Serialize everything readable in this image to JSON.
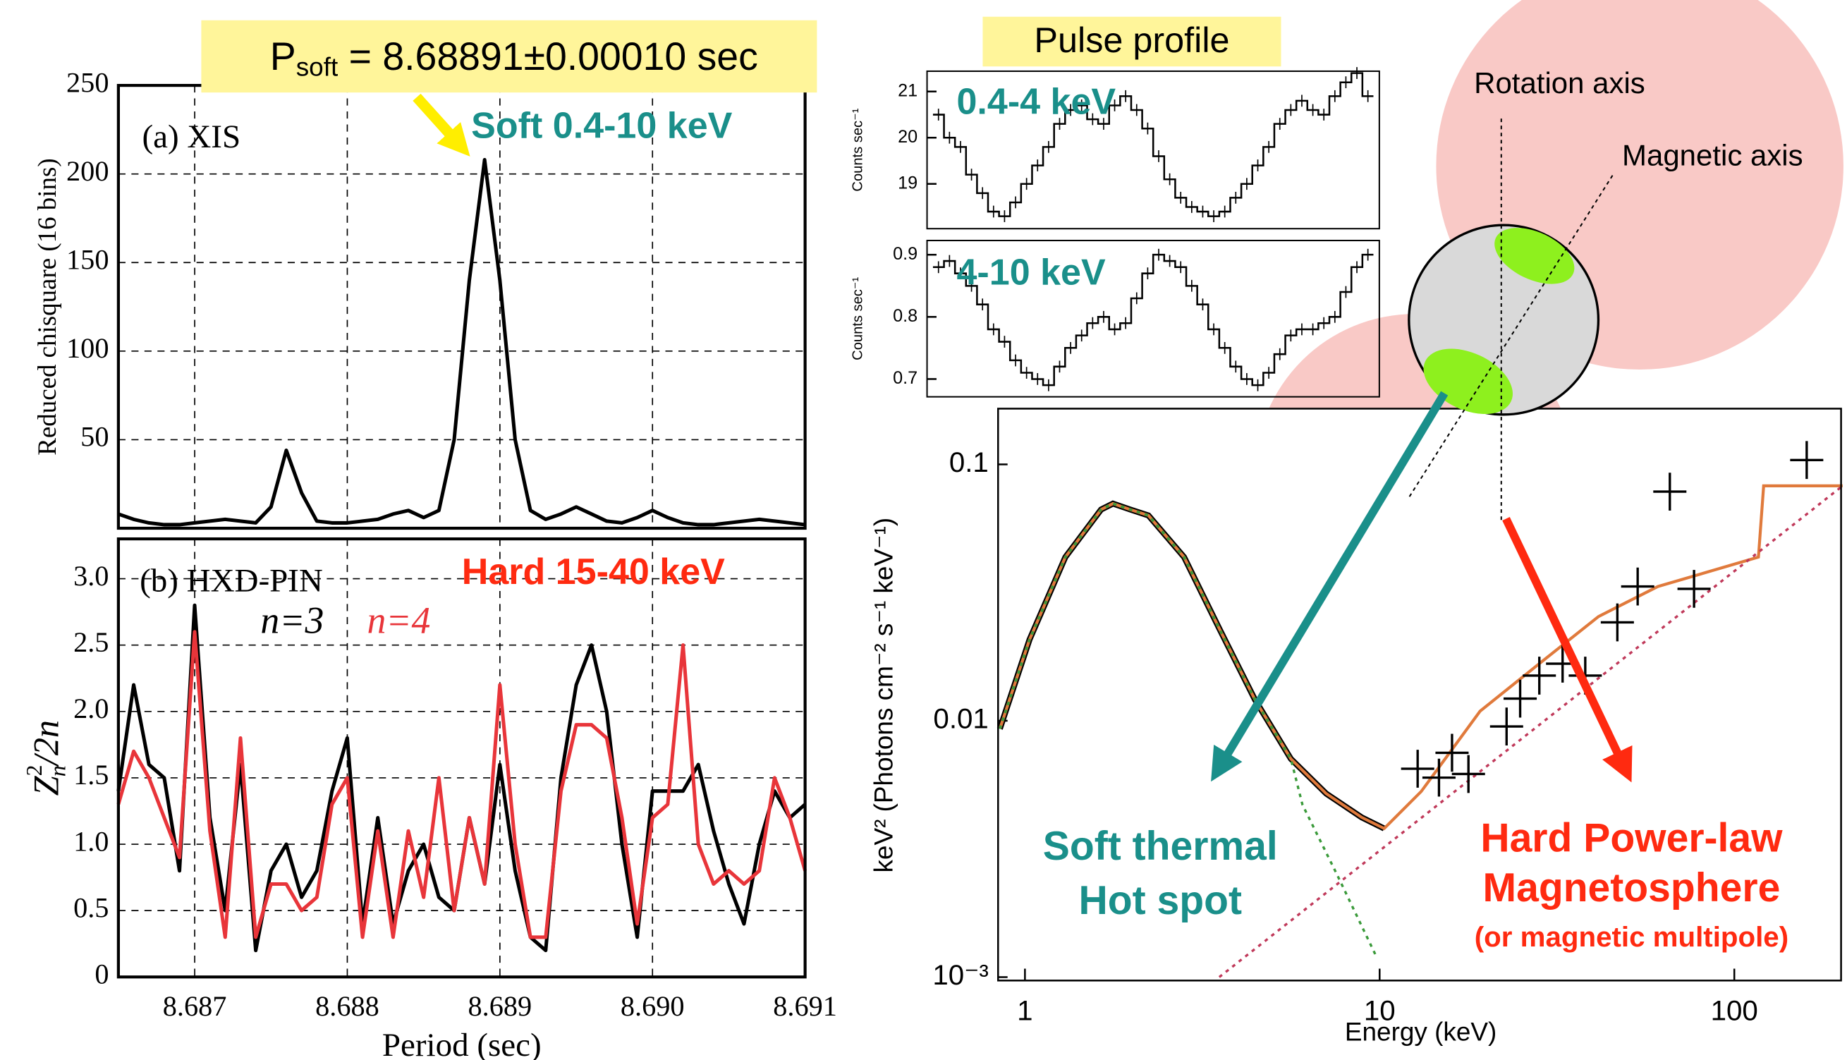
{
  "chart_data": [
    {
      "type": "line",
      "title": "(a) XIS",
      "annotation": "Soft 0.4-10 keV",
      "ylabel": "Reduced chisquare (16 bins)",
      "xlim": [
        8.6865,
        8.691
      ],
      "xticks": [
        8.687,
        8.688,
        8.689,
        8.69,
        8.691
      ],
      "xtick_labels": false,
      "ylim": [
        0,
        250
      ],
      "yticks": [
        50,
        100,
        150,
        200,
        250
      ],
      "grid": true,
      "x": [
        8.6865,
        8.6866,
        8.6867,
        8.6868,
        8.6869,
        8.687,
        8.6871,
        8.6872,
        8.6873,
        8.6874,
        8.6875,
        8.6876,
        8.6877,
        8.6878,
        8.6879,
        8.688,
        8.6881,
        8.6882,
        8.6883,
        8.6884,
        8.6885,
        8.6886,
        8.6887,
        8.6888,
        8.6889,
        8.689,
        8.6891,
        8.6892,
        8.6893,
        8.6894,
        8.6895,
        8.6896,
        8.6897,
        8.6898,
        8.6899,
        8.69,
        8.6901,
        8.6902,
        8.6903,
        8.6904,
        8.6905,
        8.6906,
        8.6907,
        8.6908,
        8.6909,
        8.691
      ],
      "series": [
        {
          "color": "#000000",
          "values": [
            8,
            5,
            3,
            2,
            2,
            3,
            4,
            5,
            4,
            3,
            12,
            44,
            20,
            4,
            3,
            3,
            4,
            5,
            8,
            10,
            6,
            10,
            50,
            140,
            208,
            140,
            50,
            10,
            5,
            8,
            12,
            8,
            4,
            3,
            6,
            10,
            6,
            3,
            2,
            2,
            3,
            4,
            5,
            4,
            3,
            2
          ]
        }
      ]
    },
    {
      "type": "line",
      "title": "(b) HXD-PIN",
      "annotation": "Hard 15-40 keV",
      "xlabel": "Period (sec)",
      "ylabel": {
        "base": "Z",
        "sup": "2",
        "sub": "n",
        "rest": "/2n"
      },
      "xlim": [
        8.6865,
        8.691
      ],
      "xticks": [
        8.687,
        8.688,
        8.689,
        {
          "value": 8.69,
          "label": "8.690"
        },
        8.691
      ],
      "ylim": [
        0,
        3.3
      ],
      "yticks": [
        0,
        0.5,
        {
          "value": 1,
          "label": "1.0"
        },
        1.5,
        {
          "value": 2,
          "label": "2.0"
        },
        2.5,
        {
          "value": 3,
          "label": "3.0"
        }
      ],
      "grid": true,
      "x": [
        8.6865,
        8.6866,
        8.6867,
        8.6868,
        8.6869,
        8.687,
        8.6871,
        8.6872,
        8.6873,
        8.6874,
        8.6875,
        8.6876,
        8.6877,
        8.6878,
        8.6879,
        8.688,
        8.6881,
        8.6882,
        8.6883,
        8.6884,
        8.6885,
        8.6886,
        8.6887,
        8.6888,
        8.6889,
        8.689,
        8.6891,
        8.6892,
        8.6893,
        8.6894,
        8.6895,
        8.6896,
        8.6897,
        8.6898,
        8.6899,
        8.69,
        8.6901,
        8.6902,
        8.6903,
        8.6904,
        8.6905,
        8.6906,
        8.6907,
        8.6908,
        8.6909,
        8.691
      ],
      "series": [
        {
          "name": "n=3",
          "color": "#000000",
          "values": [
            1.4,
            2.2,
            1.6,
            1.5,
            0.8,
            2.8,
            1.2,
            0.5,
            1.6,
            0.2,
            0.8,
            1.0,
            0.6,
            0.8,
            1.4,
            1.8,
            0.4,
            1.2,
            0.4,
            0.8,
            1.0,
            0.6,
            0.5,
            1.2,
            0.7,
            1.6,
            0.8,
            0.3,
            0.2,
            1.5,
            2.2,
            2.5,
            2.0,
            1.0,
            0.3,
            1.4,
            1.4,
            1.4,
            1.6,
            1.1,
            0.7,
            0.4,
            1.0,
            1.4,
            1.2,
            1.3
          ]
        },
        {
          "name": "n=4",
          "color": "#e8353a",
          "values": [
            1.3,
            1.7,
            1.5,
            1.2,
            0.9,
            2.6,
            1.1,
            0.3,
            1.8,
            0.3,
            0.7,
            0.7,
            0.5,
            0.6,
            1.3,
            1.5,
            0.3,
            1.1,
            0.3,
            1.1,
            0.6,
            1.5,
            0.5,
            1.2,
            0.7,
            2.2,
            1.0,
            0.3,
            0.3,
            1.4,
            1.9,
            1.9,
            1.8,
            1.2,
            0.4,
            1.2,
            1.3,
            2.5,
            1.0,
            0.7,
            0.8,
            0.7,
            0.8,
            1.5,
            1.2,
            0.8
          ]
        }
      ]
    },
    {
      "type": "step",
      "title": "Pulse profile",
      "annotation": "0.4-4 keV",
      "ylabel": "Counts sec⁻¹",
      "ylim": [
        18.03,
        21.44
      ],
      "yticks": [
        19,
        20,
        21
      ],
      "grid": false,
      "color": "#000000",
      "values": [
        20.5,
        20.0,
        19.8,
        19.2,
        18.8,
        18.4,
        18.3,
        18.6,
        19.0,
        19.4,
        19.8,
        20.3,
        20.6,
        20.7,
        20.4,
        20.3,
        20.7,
        20.9,
        20.6,
        20.2,
        19.6,
        19.1,
        18.7,
        18.5,
        18.4,
        18.3,
        18.4,
        18.7,
        19.0,
        19.4,
        19.8,
        20.3,
        20.6,
        20.8,
        20.6,
        20.5,
        20.9,
        21.2,
        21.4,
        20.9
      ]
    },
    {
      "type": "step",
      "annotation": "4-10 keV",
      "ylabel": "Counts sec⁻¹",
      "ylim": [
        0.6714,
        0.9229
      ],
      "yticks": [
        0.7,
        0.8,
        0.9
      ],
      "grid": false,
      "color": "#000000",
      "values": [
        0.88,
        0.89,
        0.87,
        0.85,
        0.82,
        0.78,
        0.76,
        0.73,
        0.71,
        0.7,
        0.69,
        0.72,
        0.75,
        0.77,
        0.79,
        0.8,
        0.78,
        0.79,
        0.83,
        0.87,
        0.9,
        0.89,
        0.88,
        0.85,
        0.82,
        0.78,
        0.75,
        0.72,
        0.7,
        0.69,
        0.71,
        0.74,
        0.77,
        0.78,
        0.78,
        0.79,
        0.8,
        0.84,
        0.88,
        0.9
      ]
    },
    {
      "type": "spectrum",
      "xlabel": "Energy (keV)",
      "ylabel": "keV² (Photons cm⁻² s⁻¹ keV⁻¹)",
      "xlog": true,
      "ylog": true,
      "grid": false,
      "xlim": [
        0.84,
        200
      ],
      "xticks": [
        1,
        10,
        100
      ],
      "ylim": [
        0.00097,
        0.165
      ],
      "yticks": [
        {
          "value": 0.001,
          "label": "10⁻³"
        },
        0.01,
        0.1
      ],
      "series": [
        {
          "style": "solid",
          "color": "#000000",
          "x": [
            0.85,
            1.03,
            1.3,
            1.64,
            1.77,
            1.98,
            2.23,
            2.81,
            3.53,
            4.45,
            5.62,
            7.07,
            8.9,
            10.3
          ],
          "values": [
            0.0093,
            0.0207,
            0.0435,
            0.0667,
            0.0703,
            0.0667,
            0.0632,
            0.0435,
            0.0229,
            0.0121,
            0.0071,
            0.0052,
            0.0042,
            0.0038
          ]
        },
        {
          "style": "solid",
          "color": "#e07a3c",
          "x": [
            0.85,
            1.03,
            1.3,
            1.64,
            1.77,
            1.98,
            2.23,
            2.81,
            3.53,
            4.45,
            5.62,
            7.07,
            8.9,
            10.3,
            13.1,
            19.2,
            28.2,
            41.4,
            60.9,
            117,
            121,
            202
          ],
          "values": [
            0.0093,
            0.0207,
            0.0435,
            0.0667,
            0.0703,
            0.0667,
            0.0632,
            0.0435,
            0.0229,
            0.0121,
            0.0071,
            0.0052,
            0.0042,
            0.0038,
            0.0053,
            0.0109,
            0.0167,
            0.0255,
            0.0334,
            0.0435,
            0.0825,
            0.0825
          ]
        },
        {
          "style": "dashed",
          "color": "#3a9a3a",
          "x": [
            0.85,
            1.03,
            1.3,
            1.64,
            1.77,
            1.98,
            2.23,
            2.81,
            3.53,
            4.45,
            5.62,
            6.06,
            7.6,
            9.8
          ],
          "values": [
            0.0093,
            0.0207,
            0.0435,
            0.0667,
            0.0703,
            0.0667,
            0.0632,
            0.0435,
            0.0229,
            0.0121,
            0.0071,
            0.0047,
            0.0025,
            0.0012
          ]
        },
        {
          "style": "dashed",
          "color": "#c0395a",
          "x": [
            3.53,
            202
          ],
          "values": [
            0.001,
            0.0825
          ]
        },
        {
          "style": "points",
          "color": "#000000",
          "x": [
            12.8,
            14.7,
            16,
            17.8,
            22.8,
            24.9,
            28.2,
            32.8,
            38,
            46.8,
            53.4,
            65.8,
            77,
            160
          ],
          "values": [
            0.0065,
            0.006,
            0.0075,
            0.0062,
            0.0095,
            0.0122,
            0.015,
            0.0167,
            0.015,
            0.0242,
            0.0334,
            0.0783,
            0.0327,
            0.104
          ]
        }
      ]
    }
  ],
  "annotations": {
    "period": {
      "symbol": "P",
      "subscript": "soft",
      "text": " = 8.68891±0.00010 sec"
    },
    "rotation_axis": "Rotation axis",
    "magnetic_axis": "Magnetic axis",
    "soft_1": "Soft thermal",
    "soft_2": "Hot spot",
    "hard_1": "Hard Power-law",
    "hard_2": "Magnetosphere",
    "hard_3": "(or magnetic multipole)"
  }
}
